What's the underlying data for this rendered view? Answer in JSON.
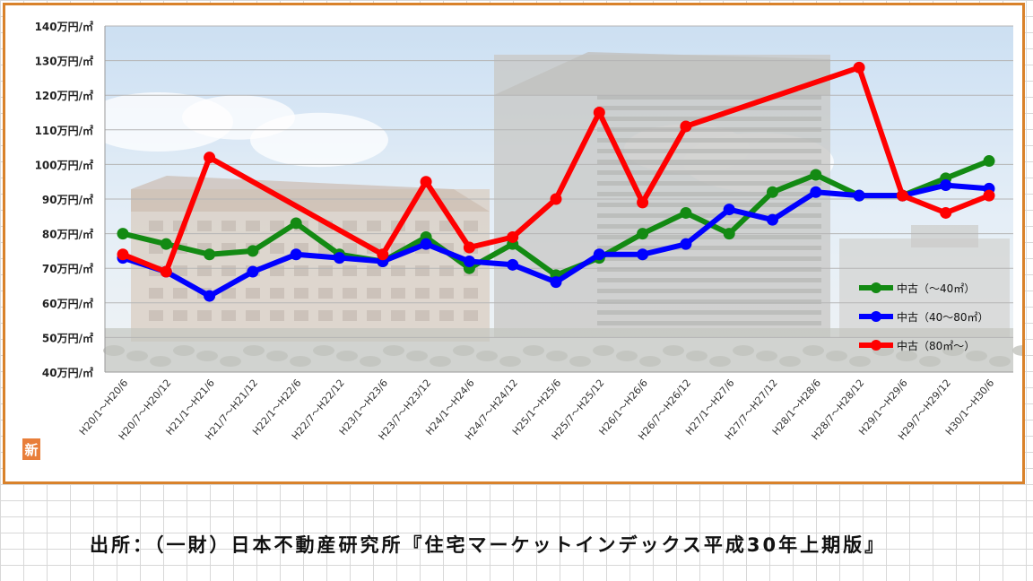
{
  "chart_data": {
    "type": "line",
    "title": "",
    "xlabel": "",
    "ylabel": "",
    "ylim": [
      40,
      140
    ],
    "yticks": [
      "140万円/㎡",
      "130万円/㎡",
      "120万円/㎡",
      "110万円/㎡",
      "100万円/㎡",
      "90万円/㎡",
      "80万円/㎡",
      "70万円/㎡",
      "60万円/㎡",
      "50万円/㎡",
      "40万円/㎡"
    ],
    "categories": [
      "H20/1～H20/6",
      "H20/7～H20/12",
      "H21/1～H21/6",
      "H21/7～H21/12",
      "H22/1～H22/6",
      "H22/7～H22/12",
      "H23/1～H23/6",
      "H23/7～H23/12",
      "H24/1～H24/6",
      "H24/7～H24/12",
      "H25/1～H25/6",
      "H25/7～H25/12",
      "H26/1～H26/6",
      "H26/7～H26/12",
      "H27/1～H27/6",
      "H27/7～H27/12",
      "H28/1～H28/6",
      "H28/7～H28/12",
      "H29/1～H29/6",
      "H29/7～H29/12",
      "H30/1～H30/6"
    ],
    "grid": true,
    "legend_position": "right",
    "series": [
      {
        "name": "中古（～40㎡）",
        "color": "#138a13",
        "values": [
          80,
          77,
          74,
          75,
          83,
          74,
          72,
          79,
          70,
          77,
          68,
          73,
          80,
          86,
          80,
          92,
          97,
          91,
          91,
          96,
          101
        ]
      },
      {
        "name": "中古（40～80㎡）",
        "color": "#0000ff",
        "values": [
          73,
          69,
          62,
          69,
          74,
          73,
          72,
          77,
          72,
          71,
          66,
          74,
          74,
          77,
          87,
          84,
          92,
          91,
          91,
          94,
          93
        ]
      },
      {
        "name": "中古（80㎡～）",
        "color": "#ff0000",
        "values": [
          74,
          69,
          102,
          null,
          null,
          null,
          74,
          95,
          76,
          79,
          90,
          115,
          89,
          111,
          null,
          null,
          null,
          128,
          91,
          86,
          91
        ]
      }
    ]
  },
  "logo": {
    "text": "新"
  },
  "source": "出所：（一財）日本不動産研究所『住宅マーケットインデックス平成30年上期版』"
}
